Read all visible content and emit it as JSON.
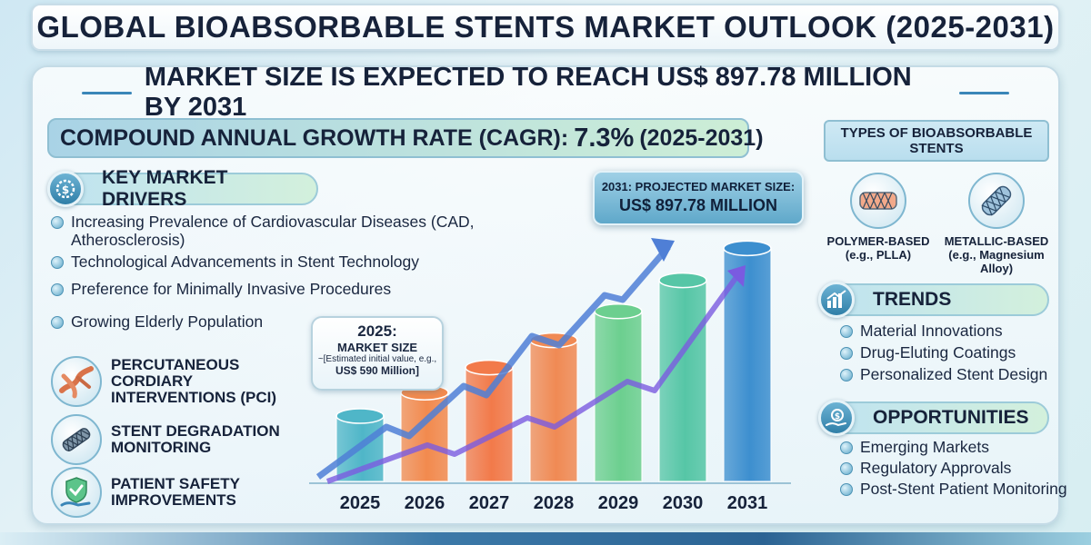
{
  "title": "GLOBAL BIOABSORBABLE STENTS MARKET OUTLOOK (2025-2031)",
  "headline": "MARKET SIZE IS EXPECTED TO REACH US$ 897.78 MILLION BY 2031",
  "cagr": {
    "label": "COMPOUND ANNUAL GROWTH RATE (CAGR):",
    "value": "7.3%",
    "period": "(2025-2031)"
  },
  "drivers": {
    "title": "KEY MARKET DRIVERS",
    "icon": "dollar-gear-icon",
    "items": [
      "Increasing Prevalence of Cardiovascular Diseases (CAD, Atherosclerosis)",
      "Technological Advancements in Stent Technology",
      "Preference for Minimally Invasive Procedures",
      "Growing Elderly Population"
    ]
  },
  "features": [
    {
      "label": "PERCUTANEOUS CORDIARY INTERVENTIONS (PCI)",
      "icon": "artery-icon"
    },
    {
      "label": "STENT DEGRADATION MONITORING",
      "icon": "stent-mesh-icon"
    },
    {
      "label": "PATIENT SAFETY IMPROVEMENTS",
      "icon": "shield-hand-icon"
    }
  ],
  "types": {
    "title_line1": "TYPES OF BIOABSORBABLE",
    "title_line2": "STENTS",
    "items": [
      {
        "name": "POLYMER-BASED",
        "sub": "(e.g., PLLA)",
        "icon": "polymer-stent-icon"
      },
      {
        "name": "METALLIC-BASED",
        "sub": "(e.g., Magnesium Alloy)",
        "icon": "metallic-stent-icon"
      }
    ]
  },
  "trends": {
    "title": "TRENDS",
    "icon": "bar-chart-icon",
    "items": [
      "Material Innovations",
      "Drug-Eluting Coatings",
      "Personalized Stent Design"
    ]
  },
  "opportunities": {
    "title": "OPPORTUNITIES",
    "icon": "money-hand-icon",
    "items": [
      "Emerging Markets",
      "Regulatory Approvals",
      "Post-Stent Patient Monitoring"
    ]
  },
  "callout_2025": {
    "year": "2025:",
    "label": "MARKET SIZE",
    "sub": "~[Estimated initial value, e.g.,",
    "value": "US$ 590 Million]"
  },
  "callout_2031": {
    "label": "2031: PROJECTED MARKET SIZE:",
    "value": "US$ 897.78 MILLION"
  },
  "colors": {
    "bars": [
      "#4fb6c8",
      "#f28a4e",
      "#f27a4a",
      "#f08a54",
      "#6ccf8f",
      "#56c6a6",
      "#3d8fcf"
    ],
    "arrow": "#4f7fd6"
  },
  "chart_data": {
    "type": "bar",
    "categories": [
      "2025",
      "2026",
      "2027",
      "2028",
      "2029",
      "2030",
      "2031"
    ],
    "values": [
      590,
      633,
      679,
      729,
      782,
      839,
      897.78
    ],
    "title": "",
    "xlabel": "",
    "ylabel": "",
    "unit": "US$ Million"
  }
}
